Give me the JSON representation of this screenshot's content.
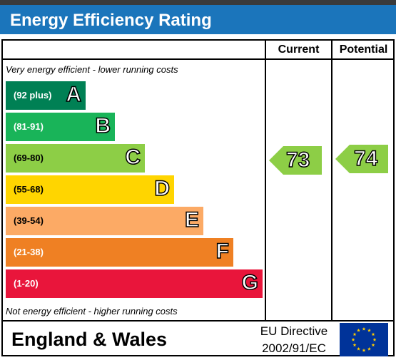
{
  "title": "Energy Efficiency Rating",
  "columns": {
    "current": "Current",
    "potential": "Potential"
  },
  "notes": {
    "top": "Very energy efficient - lower running costs",
    "bottom": "Not energy efficient - higher running costs"
  },
  "bands": [
    {
      "range": "(92 plus)",
      "letter": "A",
      "color": "#008054"
    },
    {
      "range": "(81-91)",
      "letter": "B",
      "color": "#19b459"
    },
    {
      "range": "(69-80)",
      "letter": "C",
      "color": "#8dce46"
    },
    {
      "range": "(55-68)",
      "letter": "D",
      "color": "#ffd500"
    },
    {
      "range": "(39-54)",
      "letter": "E",
      "color": "#fcaa65"
    },
    {
      "range": "(21-38)",
      "letter": "F",
      "color": "#ef8023"
    },
    {
      "range": "(1-20)",
      "letter": "G",
      "color": "#e9153b"
    }
  ],
  "ratings": {
    "current": {
      "value": "73",
      "band": "C",
      "color": "#8dce46"
    },
    "potential": {
      "value": "74",
      "band": "C",
      "color": "#8dce46"
    }
  },
  "footer": {
    "region": "England & Wales",
    "directive_line1": "EU Directive",
    "directive_line2": "2002/91/EC",
    "flag_icon": "eu-flag-icon"
  }
}
